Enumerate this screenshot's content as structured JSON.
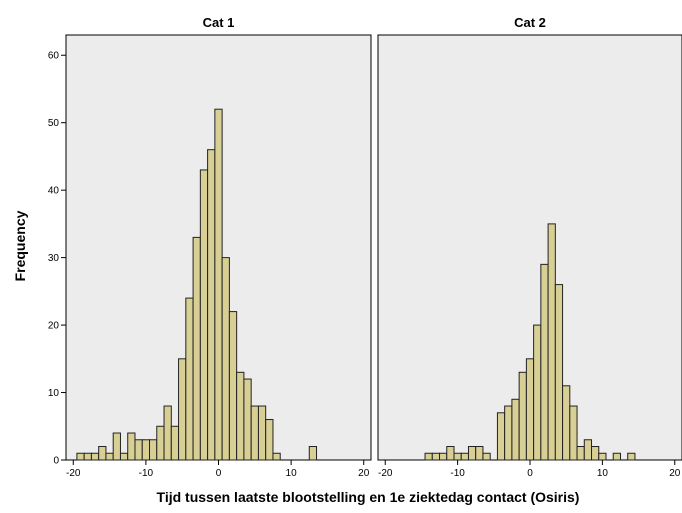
{
  "chart_data": {
    "type": "bar",
    "subtype": "histogram",
    "xlabel": "Tijd tussen laatste blootstelling en 1e ziektedag contact (Osiris)",
    "ylabel": "Frequency",
    "xlim": [
      -21,
      21
    ],
    "ylim": [
      0,
      63
    ],
    "xticks": [
      -20,
      -10,
      0,
      10,
      20
    ],
    "yticks": [
      0,
      10,
      20,
      30,
      40,
      50,
      60
    ],
    "bin_width": 1,
    "grid": false,
    "colors": {
      "bar_fill": "#d8cf95",
      "bar_stroke": "#222222",
      "plot_bg": "#ececec"
    },
    "panels": [
      {
        "name": "Cat 1",
        "bins": [
          {
            "x": -19,
            "value": 1
          },
          {
            "x": -18,
            "value": 1
          },
          {
            "x": -17,
            "value": 1
          },
          {
            "x": -16,
            "value": 2
          },
          {
            "x": -15,
            "value": 1
          },
          {
            "x": -14,
            "value": 4
          },
          {
            "x": -13,
            "value": 1
          },
          {
            "x": -12,
            "value": 4
          },
          {
            "x": -11,
            "value": 3
          },
          {
            "x": -10,
            "value": 3
          },
          {
            "x": -9,
            "value": 3
          },
          {
            "x": -8,
            "value": 5
          },
          {
            "x": -7,
            "value": 8
          },
          {
            "x": -6,
            "value": 5
          },
          {
            "x": -5,
            "value": 15
          },
          {
            "x": -4,
            "value": 24
          },
          {
            "x": -3,
            "value": 33
          },
          {
            "x": -2,
            "value": 43
          },
          {
            "x": -1,
            "value": 46
          },
          {
            "x": 0,
            "value": 52
          },
          {
            "x": 1,
            "value": 30
          },
          {
            "x": 2,
            "value": 22
          },
          {
            "x": 3,
            "value": 13
          },
          {
            "x": 4,
            "value": 12
          },
          {
            "x": 5,
            "value": 8
          },
          {
            "x": 6,
            "value": 8
          },
          {
            "x": 7,
            "value": 6
          },
          {
            "x": 8,
            "value": 1
          },
          {
            "x": 13,
            "value": 2
          }
        ]
      },
      {
        "name": "Cat 2",
        "bins": [
          {
            "x": -14,
            "value": 1
          },
          {
            "x": -13,
            "value": 1
          },
          {
            "x": -12,
            "value": 1
          },
          {
            "x": -11,
            "value": 2
          },
          {
            "x": -10,
            "value": 1
          },
          {
            "x": -9,
            "value": 1
          },
          {
            "x": -8,
            "value": 2
          },
          {
            "x": -7,
            "value": 2
          },
          {
            "x": -6,
            "value": 1
          },
          {
            "x": -4,
            "value": 7
          },
          {
            "x": -3,
            "value": 8
          },
          {
            "x": -2,
            "value": 9
          },
          {
            "x": -1,
            "value": 13
          },
          {
            "x": 0,
            "value": 15
          },
          {
            "x": 1,
            "value": 20
          },
          {
            "x": 2,
            "value": 29
          },
          {
            "x": 3,
            "value": 35
          },
          {
            "x": 4,
            "value": 26
          },
          {
            "x": 5,
            "value": 11
          },
          {
            "x": 6,
            "value": 8
          },
          {
            "x": 7,
            "value": 2
          },
          {
            "x": 8,
            "value": 3
          },
          {
            "x": 9,
            "value": 2
          },
          {
            "x": 10,
            "value": 1
          },
          {
            "x": 12,
            "value": 1
          },
          {
            "x": 14,
            "value": 1
          }
        ]
      }
    ]
  }
}
